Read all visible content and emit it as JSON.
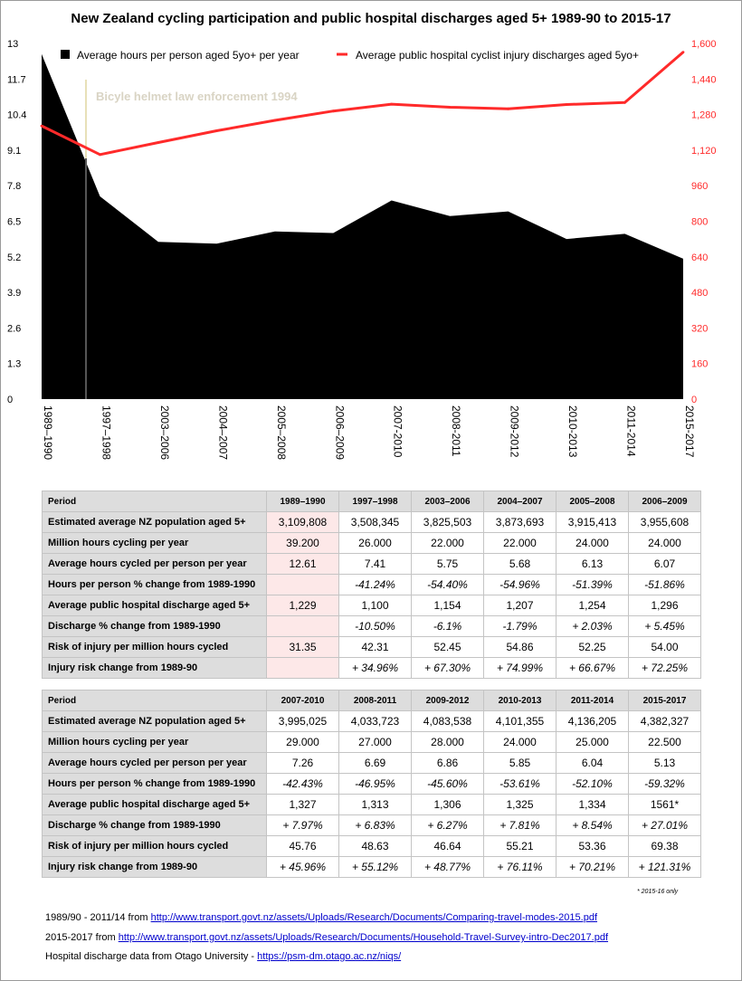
{
  "chart_data": {
    "type": "area",
    "title": "New Zealand cycling participation and public hospital discharges aged 5+ 1989-90 to 2015-17",
    "categories": [
      "1989–1990",
      "1997–1998",
      "2003–2006",
      "2004–2007",
      "2005–2008",
      "2006–2009",
      "2007-2010",
      "2008-2011",
      "2009-2012",
      "2010-2013",
      "2011-2014",
      "2015-2017"
    ],
    "series": [
      {
        "name": "Average hours per person aged 5yo+ per year",
        "axis": "left",
        "kind": "area",
        "color": "#000000",
        "values": [
          12.61,
          7.41,
          5.75,
          5.68,
          6.13,
          6.07,
          7.26,
          6.69,
          6.86,
          5.85,
          6.04,
          5.13
        ]
      },
      {
        "name": "Average public hospital cyclist injury discharges aged 5yo+",
        "axis": "right",
        "kind": "line",
        "color": "#ff2a2a",
        "values": [
          1229,
          1100,
          1154,
          1207,
          1254,
          1296,
          1327,
          1313,
          1306,
          1325,
          1334,
          1561
        ]
      }
    ],
    "left_ticks": [
      "13",
      "11.7",
      "10.4",
      "9.1",
      "7.8",
      "6.5",
      "5.2",
      "3.9",
      "2.6",
      "1.3",
      "0"
    ],
    "right_ticks": [
      "1,600",
      "1,440",
      "1,280",
      "1,120",
      "960",
      "800",
      "640",
      "480",
      "320",
      "160",
      "0"
    ],
    "ylim_left": [
      0,
      13
    ],
    "ylim_right": [
      0,
      1600
    ],
    "annotation": "Bicyle helmet law enforcement 1994",
    "legend_position": "top"
  },
  "table1": {
    "header": [
      "Period",
      "1989–1990",
      "1997–1998",
      "2003–2006",
      "2004–2007",
      "2005–2008",
      "2006–2009"
    ],
    "rows": [
      {
        "label": "Estimated average NZ population aged 5+",
        "values": [
          "3,109,808",
          "3,508,345",
          "3,825,503",
          "3,873,693",
          "3,915,413",
          "3,955,608"
        ]
      },
      {
        "label": "Million hours cycling per year",
        "values": [
          "39.200",
          "26.000",
          "22.000",
          "22.000",
          "24.000",
          "24.000"
        ]
      },
      {
        "label": "Average hours cycled per person per year",
        "values": [
          "12.61",
          "7.41",
          "5.75",
          "5.68",
          "6.13",
          "6.07"
        ]
      },
      {
        "label": "Hours per person % change from 1989-1990",
        "values": [
          "",
          "-41.24%",
          "-54.40%",
          "-54.96%",
          "-51.39%",
          "-51.86%"
        ]
      },
      {
        "label": "Average public hospital discharge aged 5+",
        "values": [
          "1,229",
          "1,100",
          "1,154",
          "1,207",
          "1,254",
          "1,296"
        ]
      },
      {
        "label": "Discharge % change from 1989-1990",
        "values": [
          "",
          "-10.50%",
          "-6.1%",
          "-1.79%",
          "+ 2.03%",
          "+ 5.45%"
        ]
      },
      {
        "label": "Risk of injury per million hours cycled",
        "values": [
          "31.35",
          "42.31",
          "52.45",
          "54.86",
          "52.25",
          "54.00"
        ]
      },
      {
        "label": "Injury risk change from 1989-90",
        "values": [
          "",
          "+ 34.96%",
          "+ 67.30%",
          "+ 74.99%",
          "+ 66.67%",
          "+ 72.25%"
        ]
      }
    ]
  },
  "table2": {
    "header": [
      "Period",
      "2007-2010",
      "2008-2011",
      "2009-2012",
      "2010-2013",
      "2011-2014",
      "2015-2017"
    ],
    "rows": [
      {
        "label": "Estimated average NZ population aged 5+",
        "values": [
          "3,995,025",
          "4,033,723",
          "4,083,538",
          "4,101,355",
          "4,136,205",
          "4,382,327"
        ]
      },
      {
        "label": "Million hours cycling per year",
        "values": [
          "29.000",
          "27.000",
          "28.000",
          "24.000",
          "25.000",
          "22.500"
        ]
      },
      {
        "label": "Average hours cycled per person per year",
        "values": [
          "7.26",
          "6.69",
          "6.86",
          "5.85",
          "6.04",
          "5.13"
        ]
      },
      {
        "label": "Hours per person % change from 1989-1990",
        "values": [
          "-42.43%",
          "-46.95%",
          "-45.60%",
          "-53.61%",
          "-52.10%",
          "-59.32%"
        ]
      },
      {
        "label": "Average public hospital discharge aged 5+",
        "values": [
          "1,327",
          "1,313",
          "1,306",
          "1,325",
          "1,334",
          "1561*"
        ]
      },
      {
        "label": "Discharge % change from 1989-1990",
        "values": [
          "+ 7.97%",
          "+ 6.83%",
          "+ 6.27%",
          "+ 7.81%",
          "+ 8.54%",
          "+ 27.01%"
        ]
      },
      {
        "label": "Risk of injury per million hours cycled",
        "values": [
          "45.76",
          "48.63",
          "46.64",
          "55.21",
          "53.36",
          "69.38"
        ]
      },
      {
        "label": "Injury risk change from 1989-90",
        "values": [
          "+ 45.96%",
          "+ 55.12%",
          "+ 48.77%",
          "+ 76.11%",
          "+ 70.21%",
          "+ 121.31%"
        ]
      }
    ]
  },
  "footnote": "* 2015-16 only",
  "sources": [
    {
      "prefix": "1989/90 - 2011/14 from ",
      "link": "http://www.transport.govt.nz/assets/Uploads/Research/Documents/Comparing-travel-modes-2015.pdf"
    },
    {
      "prefix": "2015-2017 from ",
      "link": "http://www.transport.govt.nz/assets/Uploads/Research/Documents/Household-Travel-Survey-intro-Dec2017.pdf"
    },
    {
      "prefix": "Hospital discharge data from Otago University - ",
      "link": "https://psm-dm.otago.ac.nz/niqs/"
    }
  ]
}
